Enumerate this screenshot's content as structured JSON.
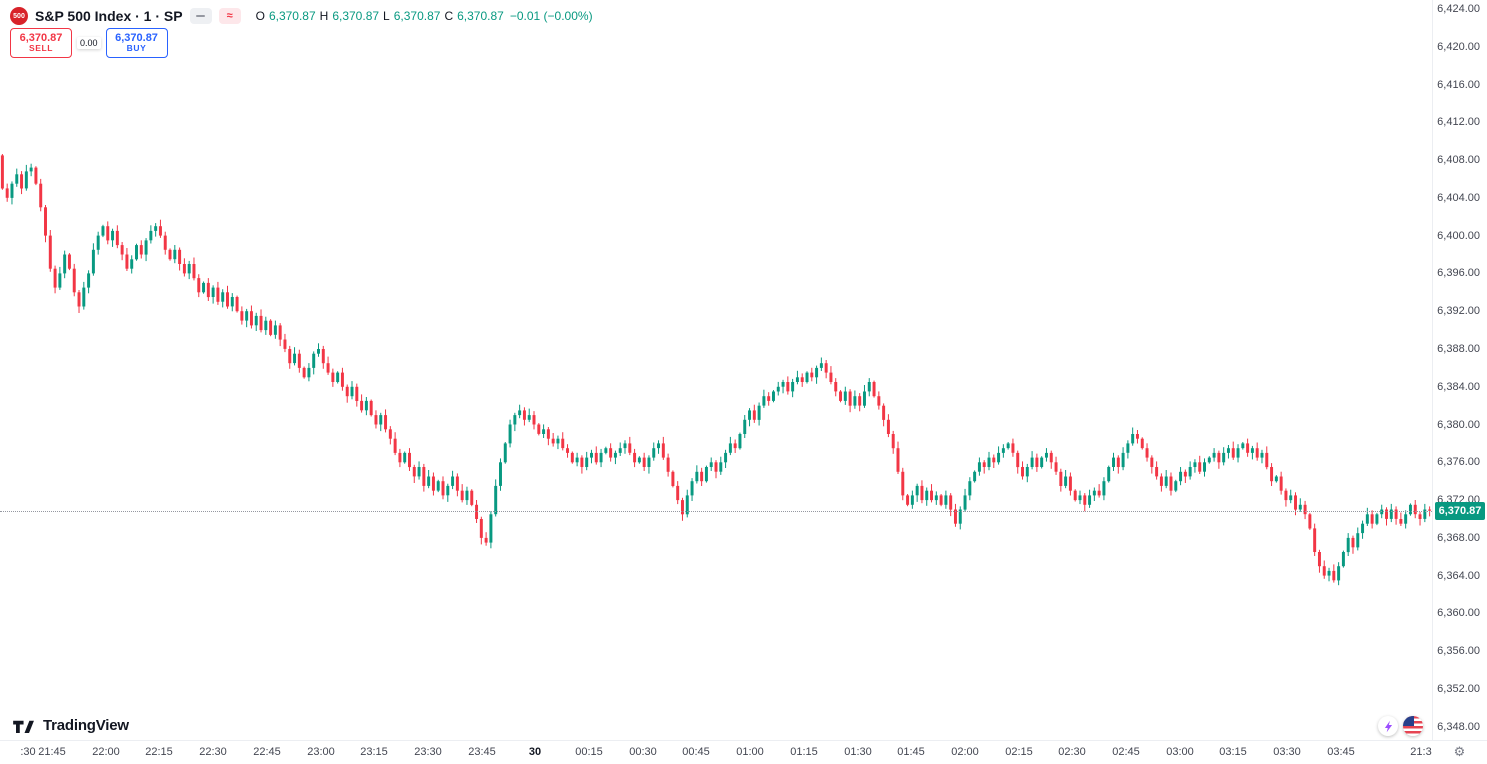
{
  "header": {
    "symbol_badge": "500",
    "title": "S&P 500 Index · 1 · SP",
    "wave_glyph": "≈",
    "ohlc": {
      "o_label": "O",
      "open": "6,370.87",
      "h_label": "H",
      "high": "6,370.87",
      "l_label": "L",
      "low": "6,370.87",
      "c_label": "C",
      "close": "6,370.87",
      "change": "−0.01 (−0.00%)"
    }
  },
  "trade_panel": {
    "sell_price": "6,370.87",
    "sell_label": "SELL",
    "spread": "0.00",
    "buy_price": "6,370.87",
    "buy_label": "BUY"
  },
  "footer": {
    "logo_text": "TradingView",
    "clock_partial": "21:3",
    "gear_glyph": "⚙"
  },
  "chart_data": {
    "type": "candlestick",
    "symbol": "S&P 500 Index",
    "interval": "1",
    "exchange": "SP",
    "up_color": "#089981",
    "down_color": "#f23645",
    "last_price": 6370.87,
    "last_price_label": "6,370.87",
    "price_max_view": 6424.95,
    "price_min_view": 6346.6,
    "price_axis_ticks": [
      "6,424.00",
      "6,420.00",
      "6,416.00",
      "6,412.00",
      "6,408.00",
      "6,404.00",
      "6,400.00",
      "6,396.00",
      "6,392.00",
      "6,388.00",
      "6,384.00",
      "6,380.00",
      "6,376.00",
      "6,372.00",
      "6,368.00",
      "6,364.00",
      "6,360.00",
      "6,356.00",
      "6,352.00",
      "6,348.00"
    ],
    "time_axis_labels": [
      ":30",
      "21:45",
      "22:00",
      "22:15",
      "22:30",
      "22:45",
      "23:00",
      "23:15",
      "23:30",
      "23:45",
      "30",
      "00:15",
      "00:30",
      "00:45",
      "01:00",
      "01:15",
      "01:30",
      "01:45",
      "02:00",
      "02:15",
      "02:30",
      "02:45",
      "03:00",
      "03:15",
      "03:30",
      "03:45",
      "21:3"
    ],
    "bold_label_index": 10,
    "open_first": 6408.5,
    "closes": [
      6405.0,
      6404.0,
      6405.5,
      6406.5,
      6405.0,
      6406.8,
      6407.2,
      6405.5,
      6403.0,
      6400.0,
      6396.5,
      6394.5,
      6396.0,
      6398.0,
      6396.5,
      6394.0,
      6392.5,
      6394.5,
      6396.0,
      6398.5,
      6400.0,
      6401.0,
      6399.5,
      6400.5,
      6399.0,
      6398.0,
      6396.5,
      6397.5,
      6399.0,
      6398.0,
      6399.5,
      6400.5,
      6401.0,
      6400.0,
      6398.5,
      6397.5,
      6398.5,
      6397.0,
      6396.0,
      6397.0,
      6395.5,
      6394.0,
      6395.0,
      6393.5,
      6394.5,
      6393.0,
      6394.0,
      6392.5,
      6393.5,
      6392.0,
      6391.0,
      6392.0,
      6390.5,
      6391.5,
      6390.0,
      6391.0,
      6389.5,
      6390.5,
      6389.0,
      6388.0,
      6386.5,
      6387.5,
      6386.0,
      6385.0,
      6386.0,
      6387.5,
      6388.0,
      6386.5,
      6385.5,
      6384.5,
      6385.5,
      6384.0,
      6383.0,
      6384.0,
      6382.5,
      6381.5,
      6382.5,
      6381.0,
      6380.0,
      6381.0,
      6379.5,
      6378.5,
      6377.0,
      6376.0,
      6377.0,
      6375.5,
      6374.5,
      6375.5,
      6373.5,
      6374.5,
      6373.0,
      6374.0,
      6372.5,
      6373.5,
      6374.5,
      6373.0,
      6372.0,
      6373.0,
      6371.5,
      6370.0,
      6368.0,
      6367.5,
      6370.5,
      6373.5,
      6376.0,
      6378.0,
      6380.0,
      6381.0,
      6381.5,
      6380.5,
      6381.0,
      6380.0,
      6379.0,
      6379.5,
      6378.5,
      6378.0,
      6378.5,
      6377.5,
      6377.0,
      6376.0,
      6376.5,
      6375.5,
      6376.5,
      6377.0,
      6376.0,
      6377.0,
      6377.5,
      6376.5,
      6377.0,
      6377.5,
      6378.0,
      6377.0,
      6376.0,
      6376.5,
      6375.5,
      6376.5,
      6377.5,
      6378.0,
      6376.5,
      6375.0,
      6373.5,
      6372.0,
      6370.5,
      6372.5,
      6374.0,
      6375.0,
      6374.0,
      6375.5,
      6376.0,
      6375.0,
      6376.0,
      6377.0,
      6378.0,
      6377.5,
      6379.0,
      6380.5,
      6381.5,
      6380.5,
      6382.0,
      6383.0,
      6382.5,
      6383.5,
      6384.0,
      6384.5,
      6383.5,
      6384.5,
      6385.0,
      6384.5,
      6385.5,
      6385.0,
      6386.0,
      6386.5,
      6385.5,
      6384.5,
      6383.5,
      6382.5,
      6383.5,
      6382.0,
      6383.0,
      6382.0,
      6383.5,
      6384.5,
      6383.0,
      6382.0,
      6380.5,
      6379.0,
      6377.5,
      6375.0,
      6372.5,
      6371.5,
      6372.5,
      6373.5,
      6372.0,
      6373.0,
      6372.0,
      6372.5,
      6371.5,
      6372.5,
      6371.0,
      6369.5,
      6371.0,
      6372.5,
      6374.0,
      6375.0,
      6376.0,
      6375.5,
      6376.5,
      6376.0,
      6377.0,
      6377.5,
      6378.0,
      6377.0,
      6375.5,
      6374.5,
      6375.5,
      6376.5,
      6375.5,
      6376.5,
      6377.0,
      6376.0,
      6375.0,
      6373.5,
      6374.5,
      6373.0,
      6372.0,
      6372.5,
      6371.5,
      6372.5,
      6373.0,
      6372.5,
      6374.0,
      6375.5,
      6376.5,
      6375.5,
      6377.0,
      6378.0,
      6379.0,
      6378.5,
      6377.5,
      6376.5,
      6375.5,
      6374.5,
      6373.5,
      6374.5,
      6373.0,
      6374.0,
      6375.0,
      6374.5,
      6375.5,
      6376.0,
      6375.0,
      6376.0,
      6376.5,
      6377.0,
      6376.0,
      6377.0,
      6377.5,
      6376.5,
      6377.5,
      6378.0,
      6377.0,
      6377.5,
      6376.5,
      6377.0,
      6375.5,
      6374.0,
      6374.5,
      6373.0,
      6372.0,
      6372.5,
      6371.0,
      6371.5,
      6370.5,
      6369.0,
      6366.5,
      6365.0,
      6364.0,
      6364.5,
      6363.5,
      6365.0,
      6366.5,
      6368.0,
      6367.0,
      6368.5,
      6369.5,
      6370.5,
      6369.5,
      6370.5,
      6371.0,
      6370.0,
      6371.0,
      6370.0,
      6369.5,
      6370.5,
      6371.5,
      6370.5,
      6370.0,
      6371.0,
      6370.87
    ]
  }
}
